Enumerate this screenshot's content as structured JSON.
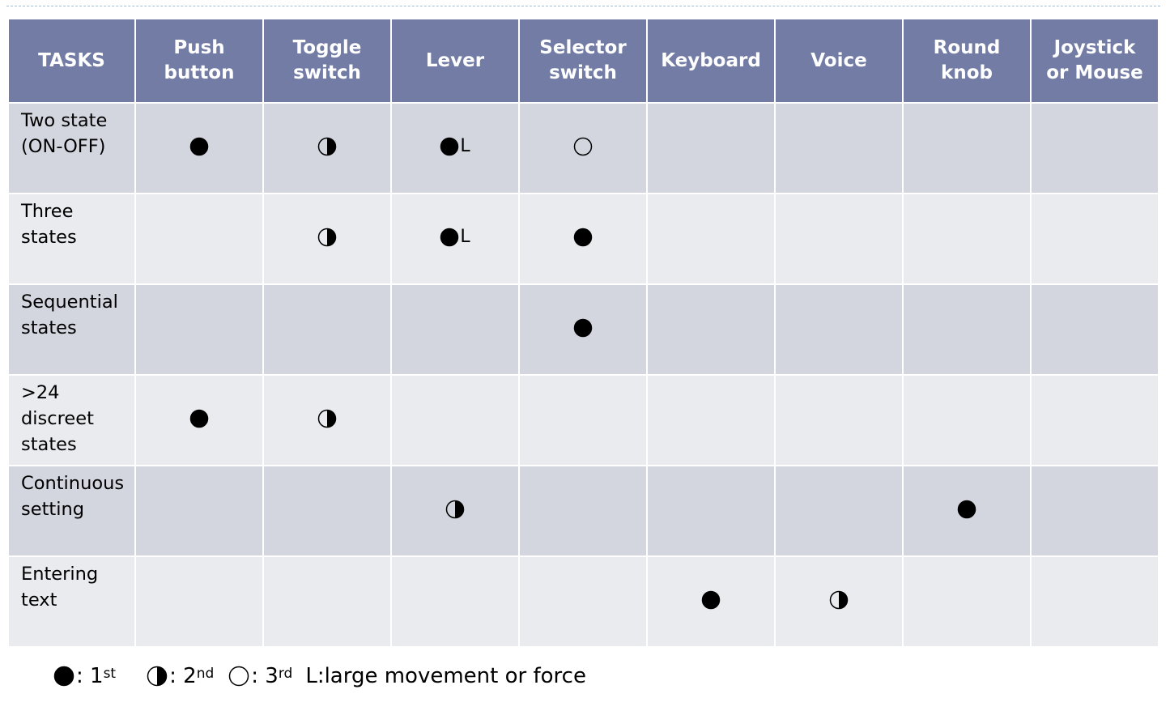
{
  "table": {
    "columns": [
      {
        "key": "tasks",
        "lines": [
          "TASKS"
        ]
      },
      {
        "key": "push_button",
        "lines": [
          "Push",
          "button"
        ]
      },
      {
        "key": "toggle_switch",
        "lines": [
          "Toggle",
          "switch"
        ]
      },
      {
        "key": "lever",
        "lines": [
          "Lever"
        ]
      },
      {
        "key": "selector_switch",
        "lines": [
          "Selector",
          "switch"
        ]
      },
      {
        "key": "keyboard",
        "lines": [
          "Keyboard"
        ]
      },
      {
        "key": "voice",
        "lines": [
          "Voice"
        ]
      },
      {
        "key": "round_knob",
        "lines": [
          "Round",
          "knob"
        ]
      },
      {
        "key": "joystick_or_mouse",
        "lines": [
          "Joystick",
          "or Mouse"
        ]
      }
    ],
    "rows": [
      {
        "task": [
          "Two state",
          "(ON-OFF)"
        ],
        "cells": [
          {
            "mark": "full"
          },
          {
            "mark": "half"
          },
          {
            "mark": "full",
            "suffix": "L"
          },
          {
            "mark": "empty"
          },
          {},
          {},
          {},
          {}
        ]
      },
      {
        "task": [
          "Three",
          "states"
        ],
        "cells": [
          {},
          {
            "mark": "half"
          },
          {
            "mark": "full",
            "suffix": "L"
          },
          {
            "mark": "full"
          },
          {},
          {},
          {},
          {}
        ]
      },
      {
        "task": [
          "Sequential",
          "states"
        ],
        "cells": [
          {},
          {},
          {},
          {
            "mark": "full"
          },
          {},
          {},
          {},
          {}
        ]
      },
      {
        "task": [
          ">24",
          "discreet",
          "states"
        ],
        "cells": [
          {
            "mark": "full"
          },
          {
            "mark": "half"
          },
          {},
          {},
          {},
          {},
          {},
          {}
        ]
      },
      {
        "task": [
          "Continuous",
          "setting"
        ],
        "cells": [
          {},
          {},
          {
            "mark": "half"
          },
          {},
          {},
          {},
          {
            "mark": "full"
          },
          {}
        ]
      },
      {
        "task": [
          "Entering",
          "text"
        ],
        "cells": [
          {},
          {},
          {},
          {},
          {
            "mark": "full"
          },
          {
            "mark": "half"
          },
          {},
          {}
        ]
      }
    ]
  },
  "legend": {
    "first": {
      "icon": "filled-circle-icon",
      "prefix": ": 1",
      "sup": "st"
    },
    "second": {
      "icon": "half-filled-circle-icon",
      "prefix": ": 2",
      "sup": "nd"
    },
    "third": {
      "icon": "empty-circle-icon",
      "prefix": ": 3",
      "sup": "rd"
    },
    "large": {
      "text": "L:large movement or force"
    }
  },
  "colors": {
    "header_bg": "#727ca5",
    "row_dark": "#d3d6df",
    "row_light": "#eaebef",
    "mark": "#000000"
  }
}
